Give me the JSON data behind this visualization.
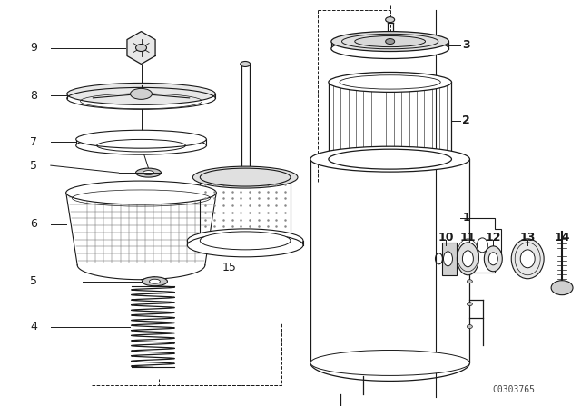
{
  "bg_color": "#ffffff",
  "line_color": "#1a1a1a",
  "watermark": "C0303765",
  "label_fontsize": 9,
  "watermark_fontsize": 7,
  "fig_w": 6.4,
  "fig_h": 4.48,
  "dpi": 100
}
